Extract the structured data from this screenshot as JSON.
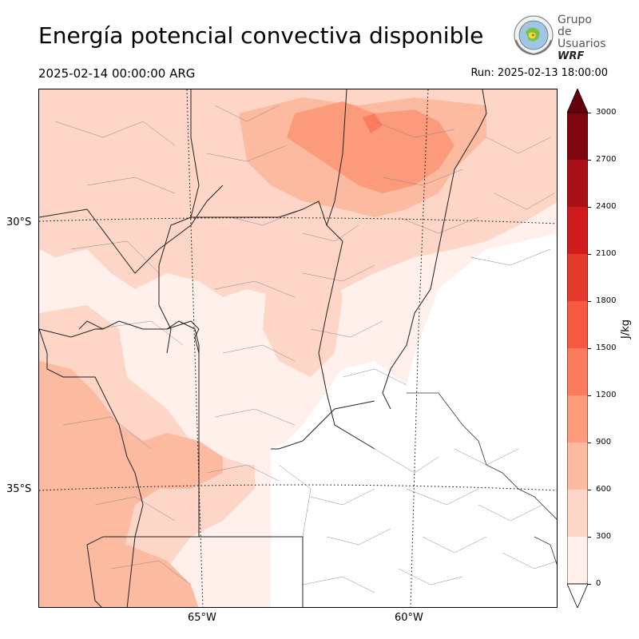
{
  "header": {
    "title": "Energía potencial convectiva disponible",
    "valid_time": "2025-02-14 00:00:00 ARG",
    "run_time": "Run: 2025-02-13 18:00:00"
  },
  "logo": {
    "line1": "Grupo de",
    "line2": "Usuarios",
    "line3": "WRF"
  },
  "map": {
    "variable": "CAPE",
    "graticule": {
      "lat_labels": [
        "30°S",
        "35°S"
      ],
      "lon_labels": [
        "65°W",
        "60°W"
      ]
    },
    "features": [
      "province-borders",
      "department-borders",
      "graticule-dotted"
    ]
  },
  "colorbar": {
    "unit": "J/kg",
    "ticks": [
      "0",
      "300",
      "600",
      "900",
      "1200",
      "1500",
      "1800",
      "2100",
      "2400",
      "2700",
      "3000"
    ],
    "colors": [
      "#fff0eb",
      "#fdd6c8",
      "#fcbaa1",
      "#fc9b7c",
      "#fb7c5c",
      "#f5593f",
      "#e63a2d",
      "#cf1b1d",
      "#aa1017",
      "#7e060f"
    ],
    "extend": "both",
    "under_color": "#ffffff",
    "over_color": "#67000d"
  }
}
